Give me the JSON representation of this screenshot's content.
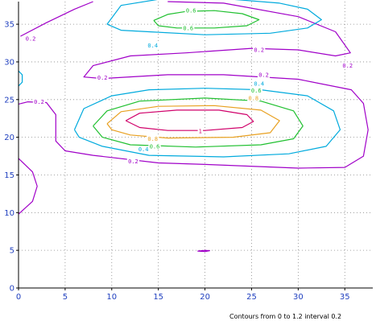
{
  "chart_data": {
    "type": "contour",
    "title": "",
    "xlabel": "",
    "ylabel": "",
    "xlim": [
      0,
      38
    ],
    "ylim": [
      0,
      38
    ],
    "x_ticks": [
      0,
      5,
      10,
      15,
      20,
      25,
      30,
      35
    ],
    "y_ticks": [
      0,
      5,
      10,
      15,
      20,
      25,
      30,
      35
    ],
    "grid": true,
    "caption": "Contours from 0 to 1.2 interval 0.2",
    "level_colors": {
      "0.2": "#a000c8",
      "0.4": "#00aadd",
      "0.6": "#20c030",
      "0.8": "#e8a020",
      "1": "#d0006a"
    },
    "contours": [
      {
        "level": 0.2,
        "label": "0.2",
        "points": [
          [
            0.2,
            33.4
          ],
          [
            3,
            35.2
          ],
          [
            6,
            37
          ],
          [
            8,
            38
          ]
        ]
      },
      {
        "level": 0.2,
        "label": "0.2",
        "points": [
          [
            16,
            38
          ],
          [
            22,
            37.8
          ],
          [
            30,
            36
          ],
          [
            34,
            34
          ],
          [
            35.6,
            31.2
          ],
          [
            34,
            30.8
          ],
          [
            30,
            31.6
          ],
          [
            25,
            31.8
          ],
          [
            18,
            31.2
          ],
          [
            12,
            30.8
          ],
          [
            8,
            29.5
          ],
          [
            7,
            28
          ],
          [
            9,
            27.8
          ],
          [
            16,
            28.3
          ],
          [
            22,
            28.3
          ],
          [
            30,
            27.7
          ],
          [
            35.7,
            26.3
          ],
          [
            37,
            24.5
          ],
          [
            37.5,
            21
          ],
          [
            37,
            17.5
          ],
          [
            35,
            16
          ],
          [
            30,
            15.9
          ],
          [
            20,
            16.4
          ],
          [
            15,
            16.6
          ],
          [
            8,
            17.6
          ],
          [
            5,
            18.2
          ],
          [
            4,
            19.5
          ],
          [
            4,
            23
          ],
          [
            3,
            24.6
          ],
          [
            1,
            24.7
          ],
          [
            0,
            24.4
          ]
        ]
      },
      {
        "level": 0.2,
        "label": "0.2",
        "points": [
          [
            0,
            17.2
          ],
          [
            1.5,
            15.4
          ],
          [
            2,
            13.5
          ],
          [
            1.5,
            11.5
          ],
          [
            0,
            9.8
          ]
        ]
      },
      {
        "level": 0.2,
        "label": null,
        "points": [
          [
            19.2,
            4.9
          ],
          [
            20,
            5
          ],
          [
            20.5,
            4.95
          ],
          [
            20,
            4.85
          ],
          [
            19.2,
            4.9
          ]
        ]
      },
      {
        "level": 0.4,
        "label": "0.4",
        "points": [
          [
            9.5,
            35
          ],
          [
            11,
            37.5
          ],
          [
            15,
            38.3
          ],
          [
            22,
            38.4
          ],
          [
            28,
            37.8
          ],
          [
            31,
            37
          ],
          [
            32.5,
            35.6
          ],
          [
            31,
            34.5
          ],
          [
            27,
            33.8
          ],
          [
            20,
            33.6
          ],
          [
            14,
            34
          ],
          [
            11,
            34.2
          ],
          [
            9.5,
            35
          ]
        ]
      },
      {
        "level": 0.4,
        "label": "0.4",
        "points": [
          [
            6,
            21
          ],
          [
            7,
            23.8
          ],
          [
            10,
            25.5
          ],
          [
            14,
            26.3
          ],
          [
            20,
            26.5
          ],
          [
            26,
            26.3
          ],
          [
            31,
            25.5
          ],
          [
            33.8,
            23.5
          ],
          [
            34.5,
            21
          ],
          [
            33,
            18.8
          ],
          [
            29,
            17.8
          ],
          [
            22,
            17.4
          ],
          [
            14,
            17.6
          ],
          [
            9,
            18.8
          ],
          [
            6.5,
            20
          ],
          [
            6,
            21
          ]
        ]
      },
      {
        "level": 0.4,
        "label": null,
        "points": [
          [
            0,
            28.8
          ],
          [
            0.4,
            28.3
          ],
          [
            0.4,
            27.3
          ],
          [
            0,
            26.8
          ]
        ]
      },
      {
        "level": 0.6,
        "label": "0.6",
        "points": [
          [
            14.5,
            35.5
          ],
          [
            16,
            36.3
          ],
          [
            18,
            36.7
          ],
          [
            21,
            36.8
          ],
          [
            24,
            36.4
          ],
          [
            25.8,
            35.6
          ],
          [
            24.5,
            34.8
          ],
          [
            21,
            34.5
          ],
          [
            17,
            34.5
          ],
          [
            15,
            34.8
          ],
          [
            14.5,
            35.5
          ]
        ]
      },
      {
        "level": 0.6,
        "label": "0.6",
        "points": [
          [
            8,
            21.5
          ],
          [
            9.5,
            23.5
          ],
          [
            13,
            24.8
          ],
          [
            20,
            25.2
          ],
          [
            26,
            24.8
          ],
          [
            29.5,
            23.5
          ],
          [
            30.5,
            21.5
          ],
          [
            29.5,
            19.8
          ],
          [
            26,
            19
          ],
          [
            19,
            18.7
          ],
          [
            12,
            19
          ],
          [
            9,
            20
          ],
          [
            8,
            21.5
          ]
        ]
      },
      {
        "level": 0.8,
        "label": "0.8",
        "points": [
          [
            9.5,
            21.8
          ],
          [
            11,
            23.4
          ],
          [
            15,
            24.1
          ],
          [
            21,
            24.2
          ],
          [
            26,
            23.6
          ],
          [
            28,
            22.2
          ],
          [
            27,
            20.6
          ],
          [
            23,
            20
          ],
          [
            16,
            19.9
          ],
          [
            12,
            20.3
          ],
          [
            10,
            21
          ],
          [
            9.5,
            21.8
          ]
        ]
      },
      {
        "level": 1.0,
        "label": "1",
        "points": [
          [
            11.5,
            22.2
          ],
          [
            13,
            23.2
          ],
          [
            17,
            23.6
          ],
          [
            21.5,
            23.6
          ],
          [
            24.5,
            23
          ],
          [
            25.2,
            22.1
          ],
          [
            24,
            21.3
          ],
          [
            20,
            20.9
          ],
          [
            16,
            20.9
          ],
          [
            13,
            21.3
          ],
          [
            11.5,
            22.2
          ]
        ]
      }
    ],
    "contour_labels": [
      {
        "text": "0.6",
        "x": 18.5,
        "y": 36.8
      },
      {
        "text": "0.6",
        "x": 18.2,
        "y": 34.5
      },
      {
        "text": "0.4",
        "x": 14.4,
        "y": 32.2
      },
      {
        "text": "0.2",
        "x": 1.3,
        "y": 33.1
      },
      {
        "text": "0.2",
        "x": 25.8,
        "y": 31.6
      },
      {
        "text": "0.2",
        "x": 35.3,
        "y": 29.5
      },
      {
        "text": "0.2",
        "x": 9,
        "y": 27.9
      },
      {
        "text": "0.2",
        "x": 26.3,
        "y": 28.3
      },
      {
        "text": "0.4",
        "x": 25.8,
        "y": 27.1
      },
      {
        "text": "0.6",
        "x": 25.5,
        "y": 26.2
      },
      {
        "text": "0.8",
        "x": 25.2,
        "y": 25.2
      },
      {
        "text": "0.2",
        "x": 2.2,
        "y": 24.7
      },
      {
        "text": "1",
        "x": 19.5,
        "y": 20.8
      },
      {
        "text": "0.8",
        "x": 14.4,
        "y": 19.8
      },
      {
        "text": "0.6",
        "x": 14.6,
        "y": 18.8
      },
      {
        "text": "0.4",
        "x": 13.4,
        "y": 18.4
      },
      {
        "text": "0.2",
        "x": 12.3,
        "y": 16.8
      }
    ]
  }
}
